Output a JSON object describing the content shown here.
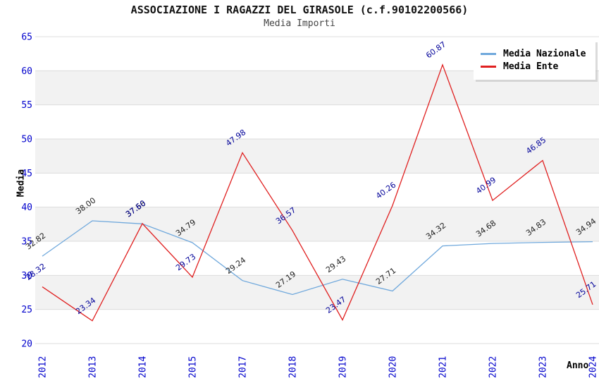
{
  "chart_data": {
    "type": "line",
    "title": "ASSOCIAZIONE I RAGAZZI DEL GIRASOLE (c.f.90102200566)",
    "subtitle": "Media Importi",
    "xlabel": "Anno",
    "ylabel": "Media",
    "x": [
      "2012",
      "2013",
      "2014",
      "2015",
      "2017",
      "2018",
      "2019",
      "2020",
      "2021",
      "2022",
      "2023",
      "2024"
    ],
    "series": [
      {
        "name": "Media Nazionale",
        "color": "#6FA8DC",
        "label_color": "#222222",
        "values": [
          32.82,
          38.0,
          37.56,
          34.79,
          29.24,
          27.19,
          29.43,
          27.71,
          34.32,
          34.68,
          34.83,
          34.94
        ]
      },
      {
        "name": "Media Ente",
        "color": "#E02020",
        "label_color": "#000099",
        "values": [
          28.32,
          23.34,
          37.6,
          29.73,
          47.98,
          36.57,
          23.47,
          40.26,
          60.87,
          40.99,
          46.85,
          25.71
        ]
      }
    ],
    "ylim": [
      20,
      65
    ],
    "yticks": [
      20,
      25,
      30,
      35,
      40,
      45,
      50,
      55,
      60,
      65
    ],
    "grid": true,
    "legend_position": "top-right",
    "colors": {
      "band": "#f2f2f2",
      "gridline": "#dcdcdc",
      "tick_label": "#0000cc",
      "title": "#111111",
      "subtitle": "#444444",
      "background": "#ffffff"
    }
  }
}
